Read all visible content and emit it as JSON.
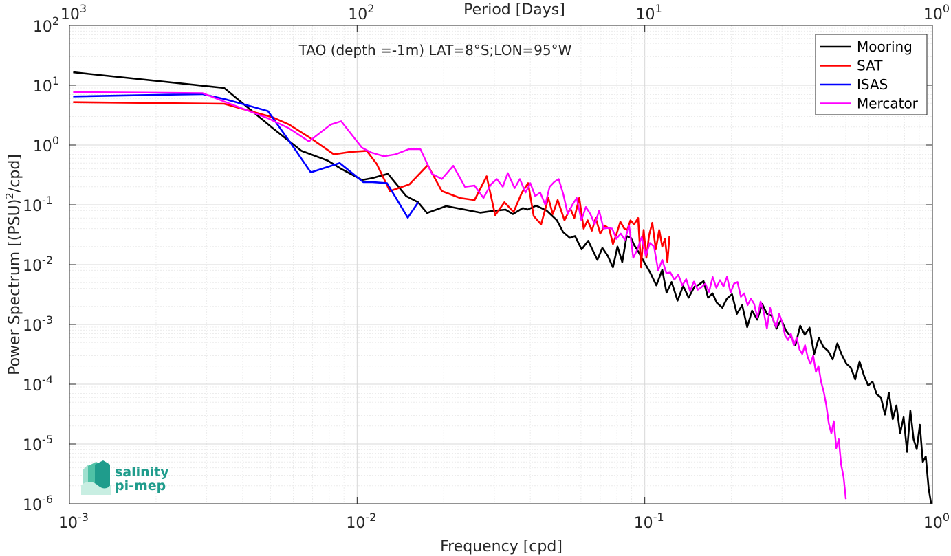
{
  "chart_data": {
    "type": "line",
    "title": "TAO (depth =-1m) LAT=8°S;LON=95°W",
    "xlabel": "Frequency [cpd]",
    "ylabel_main": "Power Spectrum [(PSU)",
    "ylabel_sup": "2",
    "ylabel_tail": "/cpd]",
    "x2label": "Period [Days]",
    "x_scale": "log",
    "y_scale": "log",
    "xlim": [
      0.001,
      1
    ],
    "ylim": [
      1e-06,
      100
    ],
    "grid": true,
    "legend_position": "top-right",
    "x_ticks": [
      {
        "base": "10",
        "exp": "-3",
        "value": 0.001
      },
      {
        "base": "10",
        "exp": "-2",
        "value": 0.01
      },
      {
        "base": "10",
        "exp": "-1",
        "value": 0.1
      },
      {
        "base": "10",
        "exp": "0",
        "value": 1
      }
    ],
    "x2_ticks": [
      {
        "base": "10",
        "exp": "3",
        "value": 0.001
      },
      {
        "base": "10",
        "exp": "2",
        "value": 0.01
      },
      {
        "base": "10",
        "exp": "1",
        "value": 0.1
      },
      {
        "base": "10",
        "exp": "0",
        "value": 1
      }
    ],
    "y_ticks": [
      {
        "base": "10",
        "exp": "2",
        "value": 100
      },
      {
        "base": "10",
        "exp": "1",
        "value": 10
      },
      {
        "base": "10",
        "exp": "0",
        "value": 1
      },
      {
        "base": "10",
        "exp": "-1",
        "value": 0.1
      },
      {
        "base": "10",
        "exp": "-2",
        "value": 0.01
      },
      {
        "base": "10",
        "exp": "-3",
        "value": 0.001
      },
      {
        "base": "10",
        "exp": "-4",
        "value": 0.0001
      },
      {
        "base": "10",
        "exp": "-5",
        "value": 1e-05
      },
      {
        "base": "10",
        "exp": "-6",
        "value": 1e-06
      }
    ],
    "series": [
      {
        "name": "Mooring",
        "color": "#000000",
        "x": [
          0.00103,
          0.00345,
          0.0051,
          0.0064,
          0.0079,
          0.0088,
          0.0104,
          0.0113,
          0.0128,
          0.0148,
          0.0163,
          0.0175,
          0.0204,
          0.0268,
          0.0296,
          0.0328,
          0.0348,
          0.0377,
          0.0392,
          0.0419,
          0.0456,
          0.0495,
          0.052,
          0.0549,
          0.0572,
          0.0603,
          0.0636,
          0.0684,
          0.0712,
          0.0744,
          0.0775,
          0.0804,
          0.0835,
          0.0865,
          0.0895,
          0.092,
          0.0953,
          0.0995,
          0.1048,
          0.1097,
          0.115,
          0.119,
          0.124,
          0.13,
          0.136,
          0.142,
          0.149,
          0.154,
          0.16,
          0.166,
          0.172,
          0.178,
          0.186,
          0.193,
          0.201,
          0.209,
          0.218,
          0.227,
          0.236,
          0.246,
          0.256,
          0.266,
          0.276,
          0.287,
          0.298,
          0.31,
          0.322,
          0.334,
          0.347,
          0.36,
          0.374,
          0.388,
          0.403,
          0.418,
          0.434,
          0.45,
          0.467,
          0.484,
          0.502,
          0.52,
          0.539,
          0.558,
          0.578,
          0.598,
          0.619,
          0.64,
          0.662,
          0.684,
          0.706,
          0.728,
          0.75,
          0.772,
          0.794,
          0.816,
          0.838,
          0.86,
          0.882,
          0.904,
          0.926,
          0.948,
          0.97,
          0.99
        ],
        "y": [
          16.5,
          9,
          1.9,
          0.8,
          0.55,
          0.4,
          0.26,
          0.28,
          0.33,
          0.14,
          0.11,
          0.073,
          0.095,
          0.074,
          0.079,
          0.083,
          0.07,
          0.088,
          0.083,
          0.097,
          0.08,
          0.055,
          0.035,
          0.028,
          0.03,
          0.018,
          0.025,
          0.012,
          0.019,
          0.014,
          0.009,
          0.02,
          0.011,
          0.03,
          0.028,
          0.021,
          0.016,
          0.011,
          0.0071,
          0.0045,
          0.0082,
          0.0034,
          0.0051,
          0.0025,
          0.0044,
          0.0028,
          0.0043,
          0.0046,
          0.0053,
          0.0028,
          0.0033,
          0.0023,
          0.0019,
          0.0027,
          0.0032,
          0.0015,
          0.0021,
          0.0009,
          0.0017,
          0.0012,
          0.0022,
          0.0015,
          0.0014,
          0.00085,
          0.0012,
          0.00078,
          0.00062,
          0.00045,
          0.00095,
          0.00067,
          0.00088,
          0.00032,
          0.0006,
          0.00042,
          0.00036,
          0.00026,
          0.00048,
          0.00031,
          0.00022,
          0.00019,
          0.00012,
          0.00024,
          0.00014,
          9.5e-05,
          0.00011,
          6.8e-05,
          6e-05,
          3.1e-05,
          7.2e-05,
          2.6e-05,
          4.4e-05,
          1.5e-05,
          2.8e-05,
          7.4e-06,
          3.6e-05,
          1.2e-05,
          8.2e-06,
          2.1e-05,
          5e-06,
          6.2e-06,
          1.8e-06,
          1e-06
        ],
        "width": 2.6
      },
      {
        "name": "SAT",
        "color": "#ff0000",
        "x": [
          0.00103,
          0.00345,
          0.0051,
          0.0058,
          0.0069,
          0.0083,
          0.0095,
          0.0108,
          0.0117,
          0.013,
          0.0152,
          0.0176,
          0.0197,
          0.0228,
          0.0256,
          0.0282,
          0.0302,
          0.0325,
          0.035,
          0.0374,
          0.0393,
          0.0411,
          0.0436,
          0.0462,
          0.0479,
          0.0498,
          0.0526,
          0.0551,
          0.0569,
          0.0592,
          0.0613,
          0.0633,
          0.0655,
          0.0675,
          0.07,
          0.0726,
          0.0752,
          0.0775,
          0.0797,
          0.0822,
          0.0849,
          0.0869,
          0.0892,
          0.0918,
          0.0948,
          0.0971,
          0.0991,
          0.1013,
          0.1035,
          0.1062,
          0.1092,
          0.1123,
          0.115,
          0.1176,
          0.1199,
          0.1219
        ],
        "y": [
          5.2,
          4.9,
          2.9,
          2.2,
          1.3,
          0.7,
          0.77,
          0.8,
          0.48,
          0.17,
          0.22,
          0.46,
          0.17,
          0.13,
          0.12,
          0.3,
          0.067,
          0.11,
          0.076,
          0.16,
          0.23,
          0.065,
          0.047,
          0.13,
          0.07,
          0.12,
          0.055,
          0.087,
          0.06,
          0.13,
          0.04,
          0.055,
          0.037,
          0.06,
          0.033,
          0.045,
          0.04,
          0.022,
          0.032,
          0.052,
          0.04,
          0.038,
          0.055,
          0.047,
          0.06,
          0.009,
          0.038,
          0.013,
          0.031,
          0.05,
          0.018,
          0.038,
          0.02,
          0.027,
          0.011,
          0.03
        ],
        "width": 2.6
      },
      {
        "name": "ISAS",
        "color": "#0000ff",
        "x": [
          0.00103,
          0.0029,
          0.0035,
          0.0049,
          0.0059,
          0.0069,
          0.0087,
          0.0105,
          0.0113,
          0.0127,
          0.015,
          0.0163
        ],
        "y": [
          6.5,
          7.1,
          5.8,
          3.7,
          1.05,
          0.35,
          0.5,
          0.24,
          0.24,
          0.23,
          0.061,
          0.11
        ],
        "width": 2.6
      },
      {
        "name": "Mercator",
        "color": "#ff00ff",
        "x": [
          0.00103,
          0.0029,
          0.0035,
          0.0049,
          0.0058,
          0.0068,
          0.0081,
          0.0088,
          0.0104,
          0.0112,
          0.0124,
          0.0136,
          0.0151,
          0.0166,
          0.0182,
          0.0197,
          0.0216,
          0.0237,
          0.0256,
          0.0275,
          0.0292,
          0.0306,
          0.0321,
          0.0334,
          0.0353,
          0.0368,
          0.0385,
          0.04,
          0.0416,
          0.0433,
          0.0451,
          0.0467,
          0.0484,
          0.0502,
          0.0521,
          0.054,
          0.056,
          0.058,
          0.0602,
          0.0624,
          0.0647,
          0.067,
          0.0694,
          0.0719,
          0.0744,
          0.077,
          0.0797,
          0.0825,
          0.0853,
          0.0882,
          0.0912,
          0.0943,
          0.0975,
          0.1008,
          0.1042,
          0.1077,
          0.1113,
          0.115,
          0.1188,
          0.1227,
          0.1267,
          0.1308,
          0.135,
          0.1393,
          0.1437,
          0.1482,
          0.1528,
          0.1575,
          0.1623,
          0.1672,
          0.1722,
          0.1773,
          0.1825,
          0.1878,
          0.1932,
          0.1987,
          0.2043,
          0.21,
          0.2158,
          0.2217,
          0.2277,
          0.2338,
          0.24,
          0.2463,
          0.2527,
          0.2592,
          0.2658,
          0.2725,
          0.2793,
          0.2862,
          0.2932,
          0.3003,
          0.3075,
          0.3148,
          0.3222,
          0.3297,
          0.3373,
          0.345,
          0.3528,
          0.3607,
          0.3687,
          0.3768,
          0.385,
          0.3933,
          0.4017,
          0.4102,
          0.4188,
          0.4275,
          0.4363,
          0.4452,
          0.4542,
          0.4633,
          0.4725,
          0.4818,
          0.4912,
          0.5
        ],
        "y": [
          7.7,
          7.4,
          5.2,
          2.8,
          1.9,
          1.15,
          2.2,
          2.5,
          0.9,
          0.75,
          0.65,
          0.7,
          0.85,
          0.85,
          0.33,
          0.27,
          0.45,
          0.2,
          0.21,
          0.13,
          0.22,
          0.27,
          0.2,
          0.34,
          0.19,
          0.27,
          0.16,
          0.23,
          0.14,
          0.16,
          0.1,
          0.2,
          0.24,
          0.27,
          0.15,
          0.07,
          0.1,
          0.13,
          0.055,
          0.092,
          0.07,
          0.047,
          0.08,
          0.04,
          0.041,
          0.04,
          0.027,
          0.033,
          0.026,
          0.045,
          0.013,
          0.018,
          0.029,
          0.014,
          0.023,
          0.02,
          0.008,
          0.012,
          0.0072,
          0.0074,
          0.0056,
          0.0068,
          0.0045,
          0.0057,
          0.0036,
          0.0052,
          0.0038,
          0.0042,
          0.0048,
          0.0035,
          0.0062,
          0.0041,
          0.0055,
          0.0043,
          0.0063,
          0.0034,
          0.0048,
          0.0051,
          0.0029,
          0.0033,
          0.0021,
          0.0027,
          0.0022,
          0.0013,
          0.0024,
          0.0016,
          0.00085,
          0.0019,
          0.0012,
          0.0009,
          0.0015,
          0.0011,
          0.00065,
          0.00055,
          0.0007,
          0.00045,
          0.0006,
          0.00038,
          0.00032,
          0.00045,
          0.00028,
          0.00022,
          0.0003,
          0.00016,
          0.0002,
          0.00011,
          7.5e-05,
          4.5e-05,
          2.2e-05,
          1.5e-05,
          2.4e-05,
          8.5e-06,
          1.2e-05,
          4.5e-06,
          2.8e-06,
          1.2e-06
        ],
        "width": 2.4
      }
    ]
  },
  "logo": {
    "line1": "salinity",
    "line2": "pi-mep",
    "color": "#1f9c8c"
  }
}
